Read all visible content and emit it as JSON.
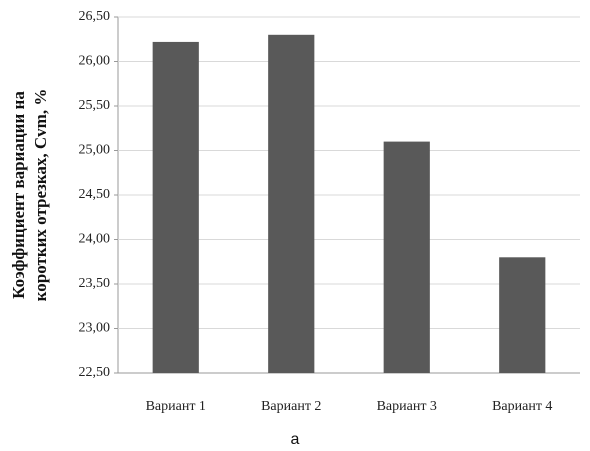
{
  "chart_data": {
    "type": "bar",
    "y_axis_label_lines": [
      "Коэффициент вариации на",
      "коротких отрезках, Cvm, %"
    ],
    "caption": "a",
    "categories": [
      "Вариант 1",
      "Вариант 2",
      "Вариант 3",
      "Вариант 4"
    ],
    "values": [
      26.22,
      26.3,
      25.1,
      23.8
    ],
    "color": "#595959",
    "ylim": [
      22.5,
      26.5
    ],
    "yticks": [
      {
        "value": 22.5,
        "label": "22,50"
      },
      {
        "value": 23,
        "label": "23,00"
      },
      {
        "value": 23.5,
        "label": "23,50"
      },
      {
        "value": 24,
        "label": "24,00"
      },
      {
        "value": 24.5,
        "label": "24,50"
      },
      {
        "value": 25,
        "label": "25,00"
      },
      {
        "value": 25.5,
        "label": "25,50"
      },
      {
        "value": 26,
        "label": "26,00"
      },
      {
        "value": 26.5,
        "label": "26,50"
      }
    ],
    "grid": true
  }
}
